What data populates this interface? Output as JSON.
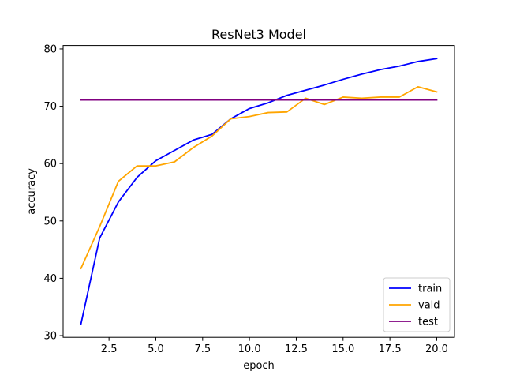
{
  "chart_data": {
    "type": "line",
    "title": "ResNet3 Model",
    "xlabel": "epoch",
    "ylabel": "accuracy",
    "xlim": [
      0.05,
      20.95
    ],
    "ylim": [
      29.7,
      80.6
    ],
    "x_ticks": [
      2.5,
      5.0,
      7.5,
      10.0,
      12.5,
      15.0,
      17.5,
      20.0
    ],
    "x_tick_labels": [
      "2.5",
      "5.0",
      "7.5",
      "10.0",
      "12.5",
      "15.0",
      "17.5",
      "20.0"
    ],
    "y_ticks": [
      30,
      40,
      50,
      60,
      70,
      80
    ],
    "y_tick_labels": [
      "30",
      "40",
      "50",
      "60",
      "70",
      "80"
    ],
    "grid": false,
    "legend_position": "lower right",
    "x": [
      1,
      2,
      3,
      4,
      5,
      6,
      7,
      8,
      9,
      10,
      11,
      12,
      13,
      14,
      15,
      16,
      17,
      18,
      19,
      20
    ],
    "series": [
      {
        "name": "train",
        "color": "#0000ff",
        "values": [
          32.0,
          47.0,
          53.3,
          57.6,
          60.5,
          62.3,
          64.1,
          65.1,
          67.8,
          69.6,
          70.6,
          71.9,
          72.8,
          73.7,
          74.7,
          75.6,
          76.4,
          77.0,
          77.8,
          78.3
        ]
      },
      {
        "name": "vaid",
        "color": "#ffa500",
        "values": [
          41.7,
          49.0,
          56.9,
          59.6,
          59.6,
          60.3,
          62.8,
          64.8,
          67.8,
          68.2,
          68.9,
          69.0,
          71.4,
          70.3,
          71.6,
          71.4,
          71.6,
          71.6,
          73.4,
          72.5
        ]
      },
      {
        "name": "test",
        "color": "#800080",
        "values": [
          71.1,
          71.1,
          71.1,
          71.1,
          71.1,
          71.1,
          71.1,
          71.1,
          71.1,
          71.1,
          71.1,
          71.1,
          71.1,
          71.1,
          71.1,
          71.1,
          71.1,
          71.1,
          71.1,
          71.1
        ]
      }
    ]
  }
}
